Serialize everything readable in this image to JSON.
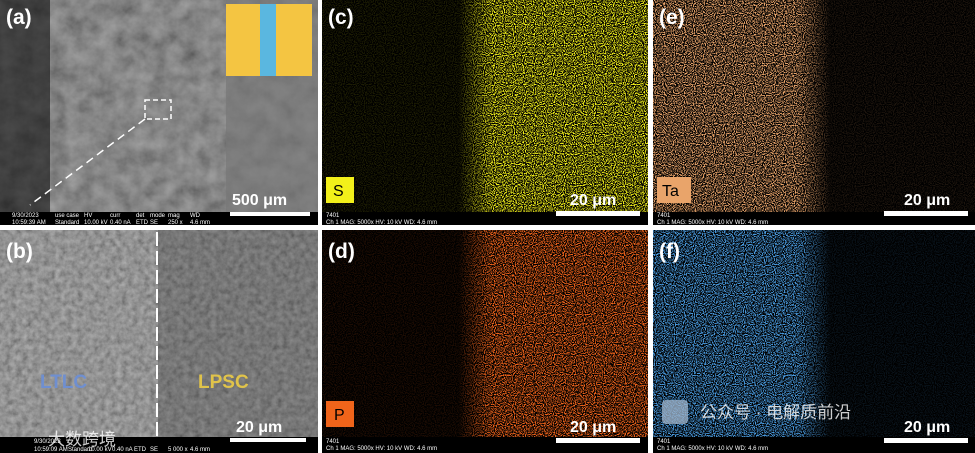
{
  "panels": [
    {
      "label": "(a)",
      "scale_bar": "500 μm",
      "info": [
        "9/30/2023",
        "10:59:39 AM",
        "use case",
        "Standard",
        "HV",
        "10.00 kV",
        "curr",
        "0.40 nA",
        "det",
        "ETD",
        "mode",
        "SE",
        "mag",
        "250 x",
        "WD",
        "4.6 mm"
      ]
    },
    {
      "label": "(b)",
      "scale_bar": "20 μm",
      "regions": [
        "LTLC",
        "LPSC"
      ],
      "info": [
        "9/30/2023",
        "10:59:09 AM",
        "Standard",
        "10.00 kV",
        "0.40 nA",
        "ETD",
        "SE",
        "5 000 x",
        "4.6 mm"
      ],
      "watermark": "大数跨境"
    },
    {
      "label": "(c)",
      "element": "S",
      "scale_bar": "20 μm",
      "info": [
        "7401",
        "Ch 1   MAG: 5000x   HV: 10 kV   WD: 4.6 mm"
      ]
    },
    {
      "label": "(d)",
      "element": "P",
      "scale_bar": "20 μm",
      "info": [
        "7401",
        "Ch 1   MAG: 5000x   HV: 10 kV   WD: 4.6 mm"
      ]
    },
    {
      "label": "(e)",
      "element": "Ta",
      "scale_bar": "20 μm",
      "info": [
        "7401",
        "Ch 1   MAG: 5000x   HV: 10 kV   WD: 4.6 mm"
      ]
    },
    {
      "label": "(f)",
      "scale_bar": "20 μm",
      "info": [
        "7401",
        "Ch 1   MAG: 5000x   HV: 10 kV   WD: 4.6 mm"
      ],
      "watermark": "公众号 · 电解质前沿"
    }
  ]
}
